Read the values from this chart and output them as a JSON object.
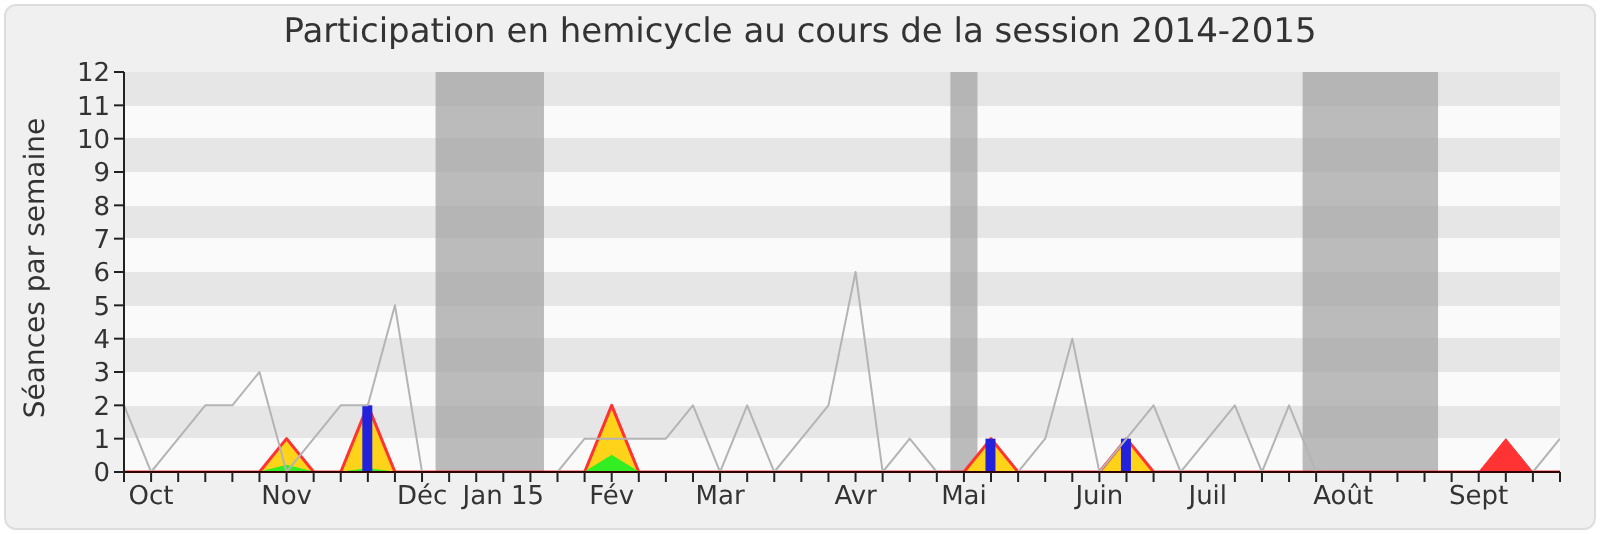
{
  "chart_data": {
    "type": "area",
    "title": "Participation en hemicycle au cours de la session 2014-2015",
    "ylabel": "Séances par semaine",
    "categories": [
      null,
      "Oct",
      null,
      null,
      null,
      null,
      "Nov",
      null,
      null,
      null,
      null,
      "Déc",
      null,
      null,
      "Jan 15",
      null,
      null,
      null,
      "Fév",
      null,
      null,
      null,
      "Mar",
      null,
      null,
      null,
      null,
      "Avr",
      null,
      null,
      null,
      "Mai",
      null,
      null,
      null,
      null,
      "Juin",
      null,
      null,
      null,
      "Juil",
      null,
      null,
      null,
      null,
      "Août",
      null,
      null,
      null,
      null,
      "Sept",
      null,
      null,
      null
    ],
    "series": [
      {
        "type": "line",
        "color": "#b4b4b4",
        "values": [
          2,
          0,
          1,
          2,
          2,
          3,
          0,
          1,
          2,
          2,
          5,
          0,
          0,
          0,
          0,
          0,
          0,
          1,
          1,
          1,
          1,
          2,
          0,
          2,
          0,
          1,
          2,
          6,
          0,
          1,
          0,
          0,
          0,
          0,
          1,
          4,
          0,
          1,
          2,
          0,
          1,
          2,
          0,
          2,
          0,
          0,
          0,
          0,
          0,
          0,
          0,
          0,
          0,
          1
        ]
      },
      {
        "color": "#ff3333",
        "values": [
          0,
          0,
          0,
          0,
          0,
          0,
          0,
          0,
          0,
          0,
          0,
          0,
          0,
          0,
          0,
          0,
          0,
          0,
          0,
          0,
          0,
          0,
          0,
          0,
          0,
          0,
          0,
          0,
          0,
          0,
          0,
          0,
          0,
          0,
          0,
          0,
          0,
          0,
          0,
          0,
          0,
          0,
          0,
          0,
          0,
          0,
          0,
          0,
          0,
          0,
          0,
          1,
          0,
          0
        ]
      },
      {
        "color": "#ffd31a",
        "values": [
          0,
          0,
          0,
          0,
          0,
          0,
          1,
          0,
          0,
          2,
          0,
          0,
          0,
          0,
          0,
          0,
          0,
          0,
          2,
          0,
          0,
          0,
          0,
          0,
          0,
          0,
          0,
          0,
          0,
          0,
          0,
          0,
          1,
          0,
          0,
          0,
          0,
          1,
          0,
          0,
          0,
          0,
          0,
          0,
          0,
          0,
          0,
          0,
          0,
          0,
          0,
          0,
          0,
          0
        ]
      },
      {
        "color": "#33ee22",
        "values": [
          0,
          0,
          0,
          0,
          0,
          0,
          0.2,
          0,
          0,
          0.1,
          0,
          0,
          0,
          0,
          0,
          0,
          0,
          0,
          0.5,
          0,
          0,
          0,
          0,
          0,
          0,
          0,
          0,
          0,
          0,
          0,
          0,
          0,
          0,
          0,
          0,
          0,
          0,
          0,
          0,
          0,
          0,
          0,
          0,
          0,
          0,
          0,
          0,
          0,
          0,
          0,
          0,
          0,
          0,
          0
        ]
      },
      {
        "type": "bar",
        "color": "#2222dd",
        "values": [
          0,
          0,
          0,
          0,
          0,
          0,
          0,
          0,
          0,
          2,
          0,
          0,
          0,
          0,
          0,
          0,
          0,
          0,
          0,
          0,
          0,
          0,
          0,
          0,
          0,
          0,
          0,
          0,
          0,
          0,
          0,
          0,
          1,
          0,
          0,
          0,
          0,
          1,
          0,
          0,
          0,
          0,
          0,
          0,
          0,
          0,
          0,
          0,
          0,
          0,
          0,
          0,
          0,
          0
        ]
      }
    ],
    "ylim": [
      0,
      12
    ],
    "yticks": [
      0,
      1,
      2,
      3,
      4,
      5,
      6,
      7,
      8,
      9,
      10,
      11,
      12
    ],
    "marker": "none"
  }
}
